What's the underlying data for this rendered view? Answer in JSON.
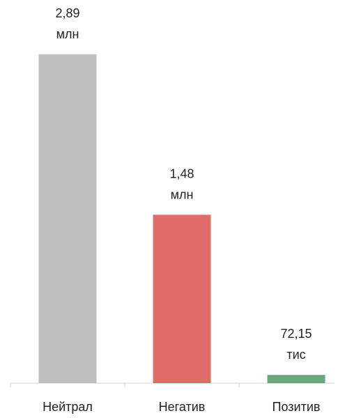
{
  "chart_data": {
    "type": "bar",
    "categories": [
      "Нейтрал",
      "Негатив",
      "Позитив"
    ],
    "values": [
      2890000,
      1480000,
      72150
    ],
    "value_labels": [
      "2,89 млн",
      "1,48 млн",
      "72,15 тис"
    ],
    "colors": [
      "#bfbfbf",
      "#e06b69",
      "#6aa57b"
    ],
    "ylim": [
      0,
      3000000
    ]
  }
}
